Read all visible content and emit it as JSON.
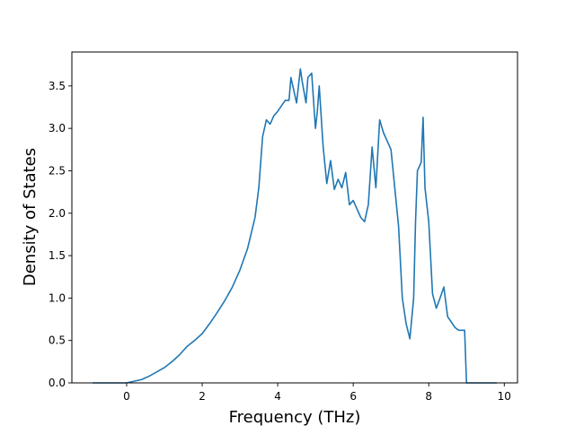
{
  "chart_data": {
    "type": "line",
    "title": "",
    "xlabel": "Frequency (THz)",
    "ylabel": "Density of States",
    "xlim": [
      -1.45,
      10.35
    ],
    "ylim": [
      0.0,
      3.9
    ],
    "xticks": [
      0,
      2,
      4,
      6,
      8,
      10
    ],
    "xtick_labels": [
      "0",
      "2",
      "4",
      "6",
      "8",
      "10"
    ],
    "yticks": [
      0.0,
      0.5,
      1.0,
      1.5,
      2.0,
      2.5,
      3.0,
      3.5
    ],
    "ytick_labels": [
      "0.0",
      "0.5",
      "1.0",
      "1.5",
      "2.0",
      "2.5",
      "3.0",
      "3.5"
    ],
    "grid": false,
    "legend": "none",
    "series": [
      {
        "color": "#1f77b4",
        "x": [
          -0.9,
          0.0,
          0.2,
          0.4,
          0.6,
          0.8,
          1.0,
          1.2,
          1.4,
          1.6,
          1.8,
          2.0,
          2.2,
          2.4,
          2.6,
          2.8,
          3.0,
          3.2,
          3.4,
          3.5,
          3.6,
          3.7,
          3.8,
          3.9,
          4.0,
          4.2,
          4.3,
          4.35,
          4.4,
          4.5,
          4.6,
          4.65,
          4.75,
          4.8,
          4.9,
          5.0,
          5.05,
          5.1,
          5.2,
          5.3,
          5.4,
          5.5,
          5.6,
          5.7,
          5.8,
          5.9,
          6.0,
          6.1,
          6.2,
          6.3,
          6.4,
          6.5,
          6.6,
          6.7,
          6.8,
          6.9,
          7.0,
          7.1,
          7.2,
          7.3,
          7.4,
          7.5,
          7.6,
          7.65,
          7.7,
          7.8,
          7.85,
          7.9,
          8.0,
          8.1,
          8.2,
          8.3,
          8.4,
          8.5,
          8.7,
          8.8,
          8.95,
          9.0,
          9.8
        ],
        "y": [
          0.0,
          0.0,
          0.02,
          0.04,
          0.08,
          0.13,
          0.18,
          0.25,
          0.33,
          0.43,
          0.5,
          0.58,
          0.7,
          0.83,
          0.97,
          1.13,
          1.33,
          1.58,
          1.95,
          2.3,
          2.9,
          3.1,
          3.05,
          3.15,
          3.2,
          3.33,
          3.33,
          3.6,
          3.5,
          3.3,
          3.7,
          3.55,
          3.3,
          3.6,
          3.65,
          3.0,
          3.2,
          3.5,
          2.8,
          2.35,
          2.62,
          2.28,
          2.4,
          2.3,
          2.48,
          2.1,
          2.15,
          2.05,
          1.95,
          1.9,
          2.1,
          2.78,
          2.3,
          3.1,
          2.95,
          2.85,
          2.75,
          2.3,
          1.85,
          1.0,
          0.7,
          0.52,
          1.0,
          1.9,
          2.5,
          2.6,
          3.13,
          2.3,
          1.9,
          1.05,
          0.88,
          1.0,
          1.13,
          0.78,
          0.65,
          0.62,
          0.62,
          0.0,
          0.0
        ]
      }
    ]
  }
}
